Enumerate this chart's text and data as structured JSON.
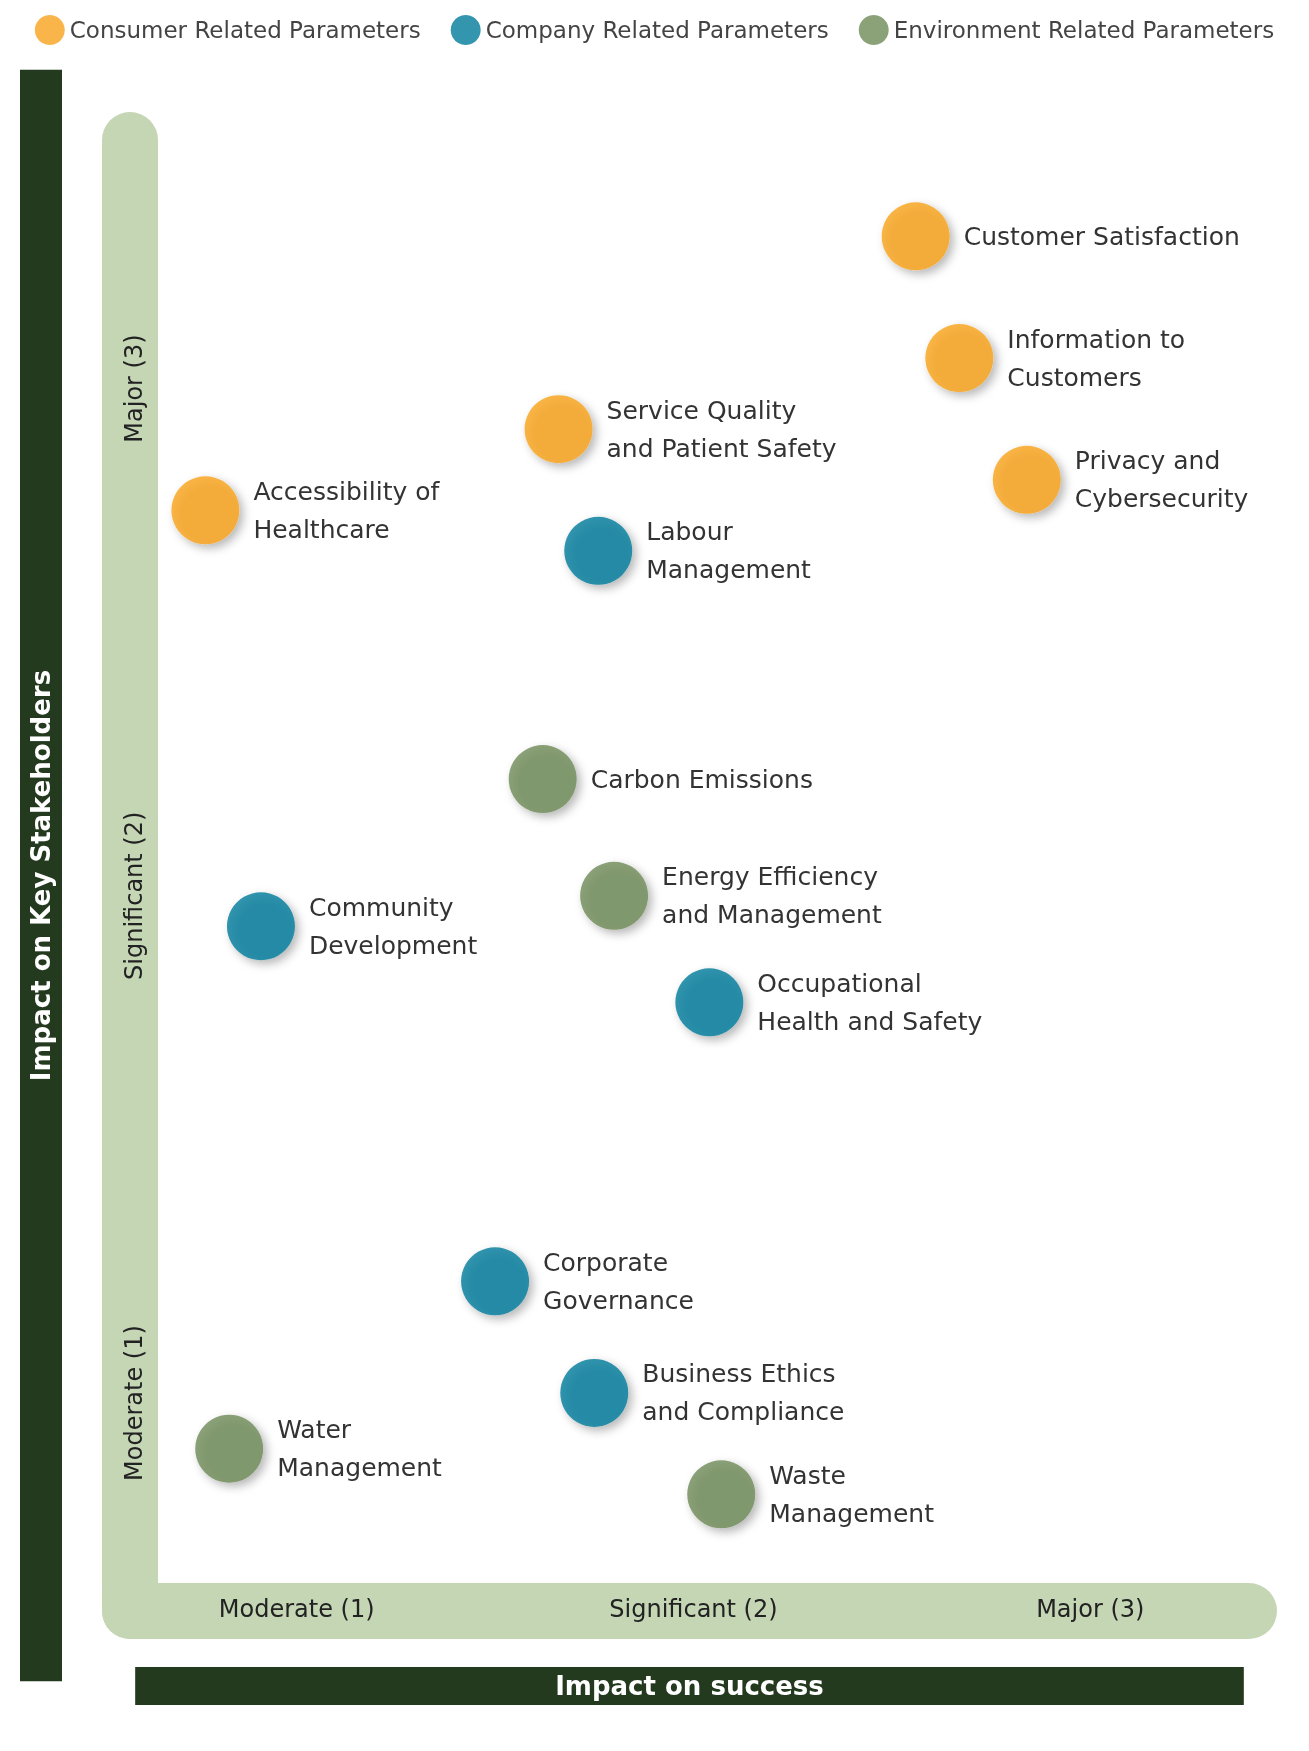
{
  "chart_data": {
    "type": "scatter",
    "xlabel": "Impact on success",
    "ylabel": "Impact on Key Stakeholders",
    "xlim": [
      0.58,
      3.4
    ],
    "ylim": [
      0.59,
      3.49
    ],
    "xticks": [
      {
        "value": 1,
        "label": "Moderate (1)"
      },
      {
        "value": 2,
        "label": "Significant (2)"
      },
      {
        "value": 3,
        "label": "Major (3)"
      }
    ],
    "yticks": [
      {
        "value": 1,
        "label": "Moderate (1)"
      },
      {
        "value": 2,
        "label": "Significant (2)"
      },
      {
        "value": 3,
        "label": "Major (3)"
      }
    ],
    "legend": "top",
    "grid": false,
    "marker": "circle",
    "series": [
      {
        "name": "Consumer Related Parameters",
        "color": "#f7a21b",
        "x": [
          2.56,
          2.67,
          2.84,
          1.66,
          0.77
        ],
        "values": [
          3.3,
          3.06,
          2.82,
          2.92,
          2.76
        ]
      },
      {
        "name": "Company Related Parameters",
        "color": "#007a9a",
        "x": [
          1.76,
          0.91,
          2.04,
          1.5,
          1.75
        ],
        "values": [
          2.68,
          1.94,
          1.79,
          1.24,
          1.02
        ]
      },
      {
        "name": "Environment Related Parameters",
        "color": "#6e8b57",
        "x": [
          1.62,
          1.8,
          0.83,
          2.07
        ],
        "values": [
          2.23,
          2.0,
          0.91,
          0.82
        ]
      }
    ],
    "annotations": [
      {
        "text": "Customer Satisfaction",
        "x": 2.56,
        "y": 3.3
      },
      {
        "text": "Information to\nCustomers",
        "x": 2.67,
        "y": 3.06
      },
      {
        "text": "Privacy and\nCybersecurity",
        "x": 2.84,
        "y": 2.82
      },
      {
        "text": "Service Quality\nand Patient Safety",
        "x": 1.66,
        "y": 2.92
      },
      {
        "text": "Accessibility of\nHealthcare",
        "x": 0.77,
        "y": 2.76
      },
      {
        "text": "Labour\nManagement",
        "x": 1.76,
        "y": 2.68
      },
      {
        "text": "Community\nDevelopment",
        "x": 0.91,
        "y": 1.94
      },
      {
        "text": "Occupational\nHealth and Safety",
        "x": 2.04,
        "y": 1.79
      },
      {
        "text": "Corporate\nGovernance",
        "x": 1.5,
        "y": 1.24
      },
      {
        "text": "Business Ethics\nand Compliance",
        "x": 1.75,
        "y": 1.02
      },
      {
        "text": "Carbon Emissions",
        "x": 1.62,
        "y": 2.23
      },
      {
        "text": "Energy Efficiency\nand Management",
        "x": 1.8,
        "y": 2.0
      },
      {
        "text": "Water\nManagement",
        "x": 0.83,
        "y": 0.91
      },
      {
        "text": "Waste\nManagement",
        "x": 2.07,
        "y": 0.82
      }
    ]
  }
}
